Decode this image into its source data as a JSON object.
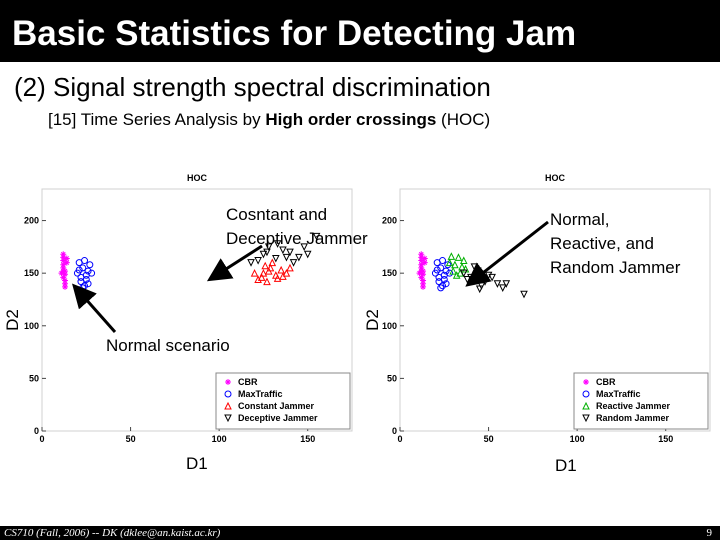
{
  "slide": {
    "title": "Basic Statistics for Detecting Jam",
    "subtitle": "(2) Signal strength spectral discrimination",
    "reference_prefix": "[15] Time Series Analysis by ",
    "reference_bold": "High order crossings",
    "reference_suffix": " (HOC)",
    "footer": "CS710 (Fall, 2006) -- DK (dklee@an.kaist.ac.kr)",
    "page_number": "9"
  },
  "annotations": {
    "left_arrow_text_line1": "Cosntant and",
    "left_arrow_text_line2": "Deceptive Jammer",
    "normal_scenario": "Normal scenario",
    "right_arrow_text_line1": "Normal,",
    "right_arrow_text_line2": "Reactive, and",
    "right_arrow_text_line3": "Random Jammer",
    "arrow_color": "#000000"
  },
  "chart_data": [
    {
      "type": "scatter",
      "title": "HOC",
      "xlabel": "D1",
      "ylabel": "D2",
      "xlim": [
        0,
        175
      ],
      "ylim": [
        0,
        230
      ],
      "xticks": [
        "0",
        "50",
        "100",
        "150"
      ],
      "yticks": [
        "0",
        "50",
        "100",
        "150",
        "200"
      ],
      "grid": false,
      "legend_position": "bottom-right",
      "series": [
        {
          "name": "CBR",
          "marker": "star",
          "color": "#ff00ff",
          "points": [
            [
              12,
              165
            ],
            [
              12,
              158
            ],
            [
              13,
              152
            ],
            [
              12,
              146
            ],
            [
              13,
              140
            ],
            [
              12,
              162
            ],
            [
              13,
              149
            ],
            [
              12,
              155
            ],
            [
              13,
              143
            ],
            [
              12,
              168
            ],
            [
              14,
              160
            ],
            [
              11,
              150
            ],
            [
              13,
              137
            ],
            [
              12,
              152
            ],
            [
              14,
              164
            ]
          ]
        },
        {
          "name": "MaxTraffic",
          "marker": "circle",
          "color": "#0000ff",
          "points": [
            [
              20,
              150
            ],
            [
              22,
              142
            ],
            [
              23,
              155
            ],
            [
              25,
              148
            ],
            [
              21,
              160
            ],
            [
              24,
              138
            ],
            [
              26,
              152
            ],
            [
              22,
              146
            ],
            [
              27,
              158
            ],
            [
              23,
              136
            ],
            [
              25,
              144
            ],
            [
              21,
              153
            ],
            [
              28,
              150
            ],
            [
              24,
              162
            ],
            [
              26,
              140
            ]
          ]
        },
        {
          "name": "Constant Jammer",
          "marker": "triangle-up",
          "color": "#ff0000",
          "points": [
            [
              120,
              150
            ],
            [
              124,
              146
            ],
            [
              128,
              152
            ],
            [
              132,
              148
            ],
            [
              126,
              157
            ],
            [
              135,
              153
            ],
            [
              122,
              144
            ],
            [
              130,
              160
            ],
            [
              138,
              150
            ],
            [
              127,
              142
            ],
            [
              133,
              145
            ],
            [
              140,
              155
            ],
            [
              125,
              150
            ],
            [
              136,
              147
            ],
            [
              129,
              155
            ]
          ]
        },
        {
          "name": "Deceptive Jammer",
          "marker": "triangle-down",
          "color": "#000000",
          "points": [
            [
              118,
              160
            ],
            [
              125,
              168
            ],
            [
              132,
              164
            ],
            [
              140,
              170
            ],
            [
              128,
              175
            ],
            [
              145,
              165
            ],
            [
              136,
              172
            ],
            [
              122,
              162
            ],
            [
              150,
              168
            ],
            [
              133,
              178
            ],
            [
              142,
              160
            ],
            [
              127,
              170
            ],
            [
              138,
              165
            ],
            [
              148,
              175
            ],
            [
              155,
              185
            ]
          ]
        }
      ]
    },
    {
      "type": "scatter",
      "title": "HOC",
      "xlabel": "D1",
      "ylabel": "D2",
      "xlim": [
        0,
        175
      ],
      "ylim": [
        0,
        230
      ],
      "xticks": [
        "0",
        "50",
        "100",
        "150"
      ],
      "yticks": [
        "0",
        "50",
        "100",
        "150",
        "200"
      ],
      "grid": false,
      "legend_position": "bottom-right",
      "series": [
        {
          "name": "CBR",
          "marker": "star",
          "color": "#ff00ff",
          "points": [
            [
              12,
              165
            ],
            [
              12,
              158
            ],
            [
              13,
              152
            ],
            [
              12,
              146
            ],
            [
              13,
              140
            ],
            [
              12,
              162
            ],
            [
              13,
              149
            ],
            [
              12,
              155
            ],
            [
              13,
              143
            ],
            [
              12,
              168
            ],
            [
              14,
              160
            ],
            [
              11,
              150
            ],
            [
              13,
              137
            ],
            [
              12,
              152
            ],
            [
              14,
              164
            ]
          ]
        },
        {
          "name": "MaxTraffic",
          "marker": "circle",
          "color": "#0000ff",
          "points": [
            [
              20,
              150
            ],
            [
              22,
              142
            ],
            [
              23,
              155
            ],
            [
              25,
              148
            ],
            [
              21,
              160
            ],
            [
              24,
              138
            ],
            [
              26,
              152
            ],
            [
              22,
              146
            ],
            [
              27,
              158
            ],
            [
              23,
              136
            ],
            [
              25,
              144
            ],
            [
              21,
              153
            ],
            [
              28,
              150
            ],
            [
              24,
              162
            ],
            [
              26,
              140
            ]
          ]
        },
        {
          "name": "Reactive Jammer",
          "marker": "triangle-up",
          "color": "#00b000",
          "points": [
            [
              28,
              160
            ],
            [
              30,
              152
            ],
            [
              33,
              165
            ],
            [
              35,
              156
            ],
            [
              32,
              148
            ],
            [
              36,
              162
            ],
            [
              31,
              158
            ],
            [
              34,
              150
            ],
            [
              29,
              166
            ],
            [
              37,
              154
            ]
          ]
        },
        {
          "name": "Random Jammer",
          "marker": "triangle-down",
          "color": "#000000",
          "points": [
            [
              36,
              150
            ],
            [
              40,
              146
            ],
            [
              44,
              152
            ],
            [
              48,
              142
            ],
            [
              42,
              156
            ],
            [
              50,
              148
            ],
            [
              46,
              138
            ],
            [
              55,
              140
            ],
            [
              52,
              146
            ],
            [
              38,
              144
            ],
            [
              45,
              135
            ],
            [
              60,
              140
            ],
            [
              70,
              130
            ],
            [
              58,
              136
            ],
            [
              43,
              148
            ]
          ]
        }
      ]
    }
  ]
}
